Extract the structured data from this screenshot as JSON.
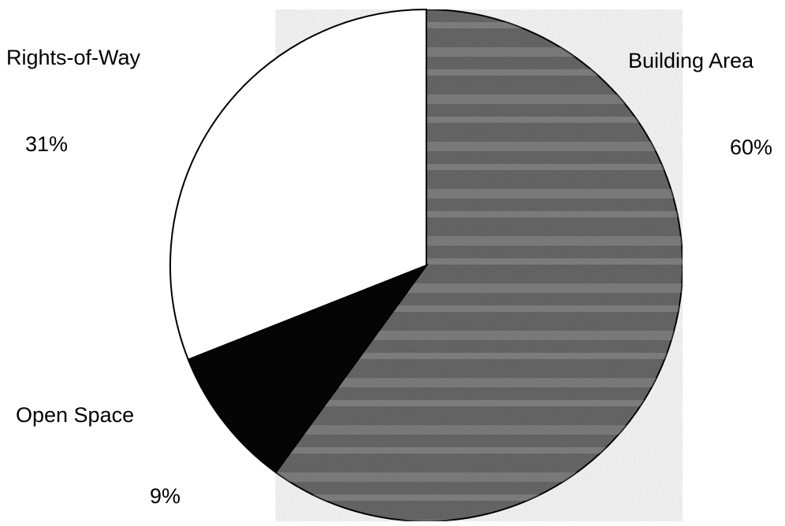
{
  "chart_data": {
    "type": "pie",
    "slices": [
      {
        "label": "Building Area",
        "value": 60,
        "display": "60%",
        "color": "#6a6a6a",
        "pattern": "noise"
      },
      {
        "label": "Open Space",
        "value": 9,
        "display": "9%",
        "color": "#050505",
        "pattern": "solid"
      },
      {
        "label": "Rights-of-Way",
        "value": 31,
        "display": "31%",
        "color": "#ffffff",
        "pattern": "solid"
      }
    ],
    "start": "12 o'clock",
    "direction": "clockwise",
    "legend": "none"
  }
}
